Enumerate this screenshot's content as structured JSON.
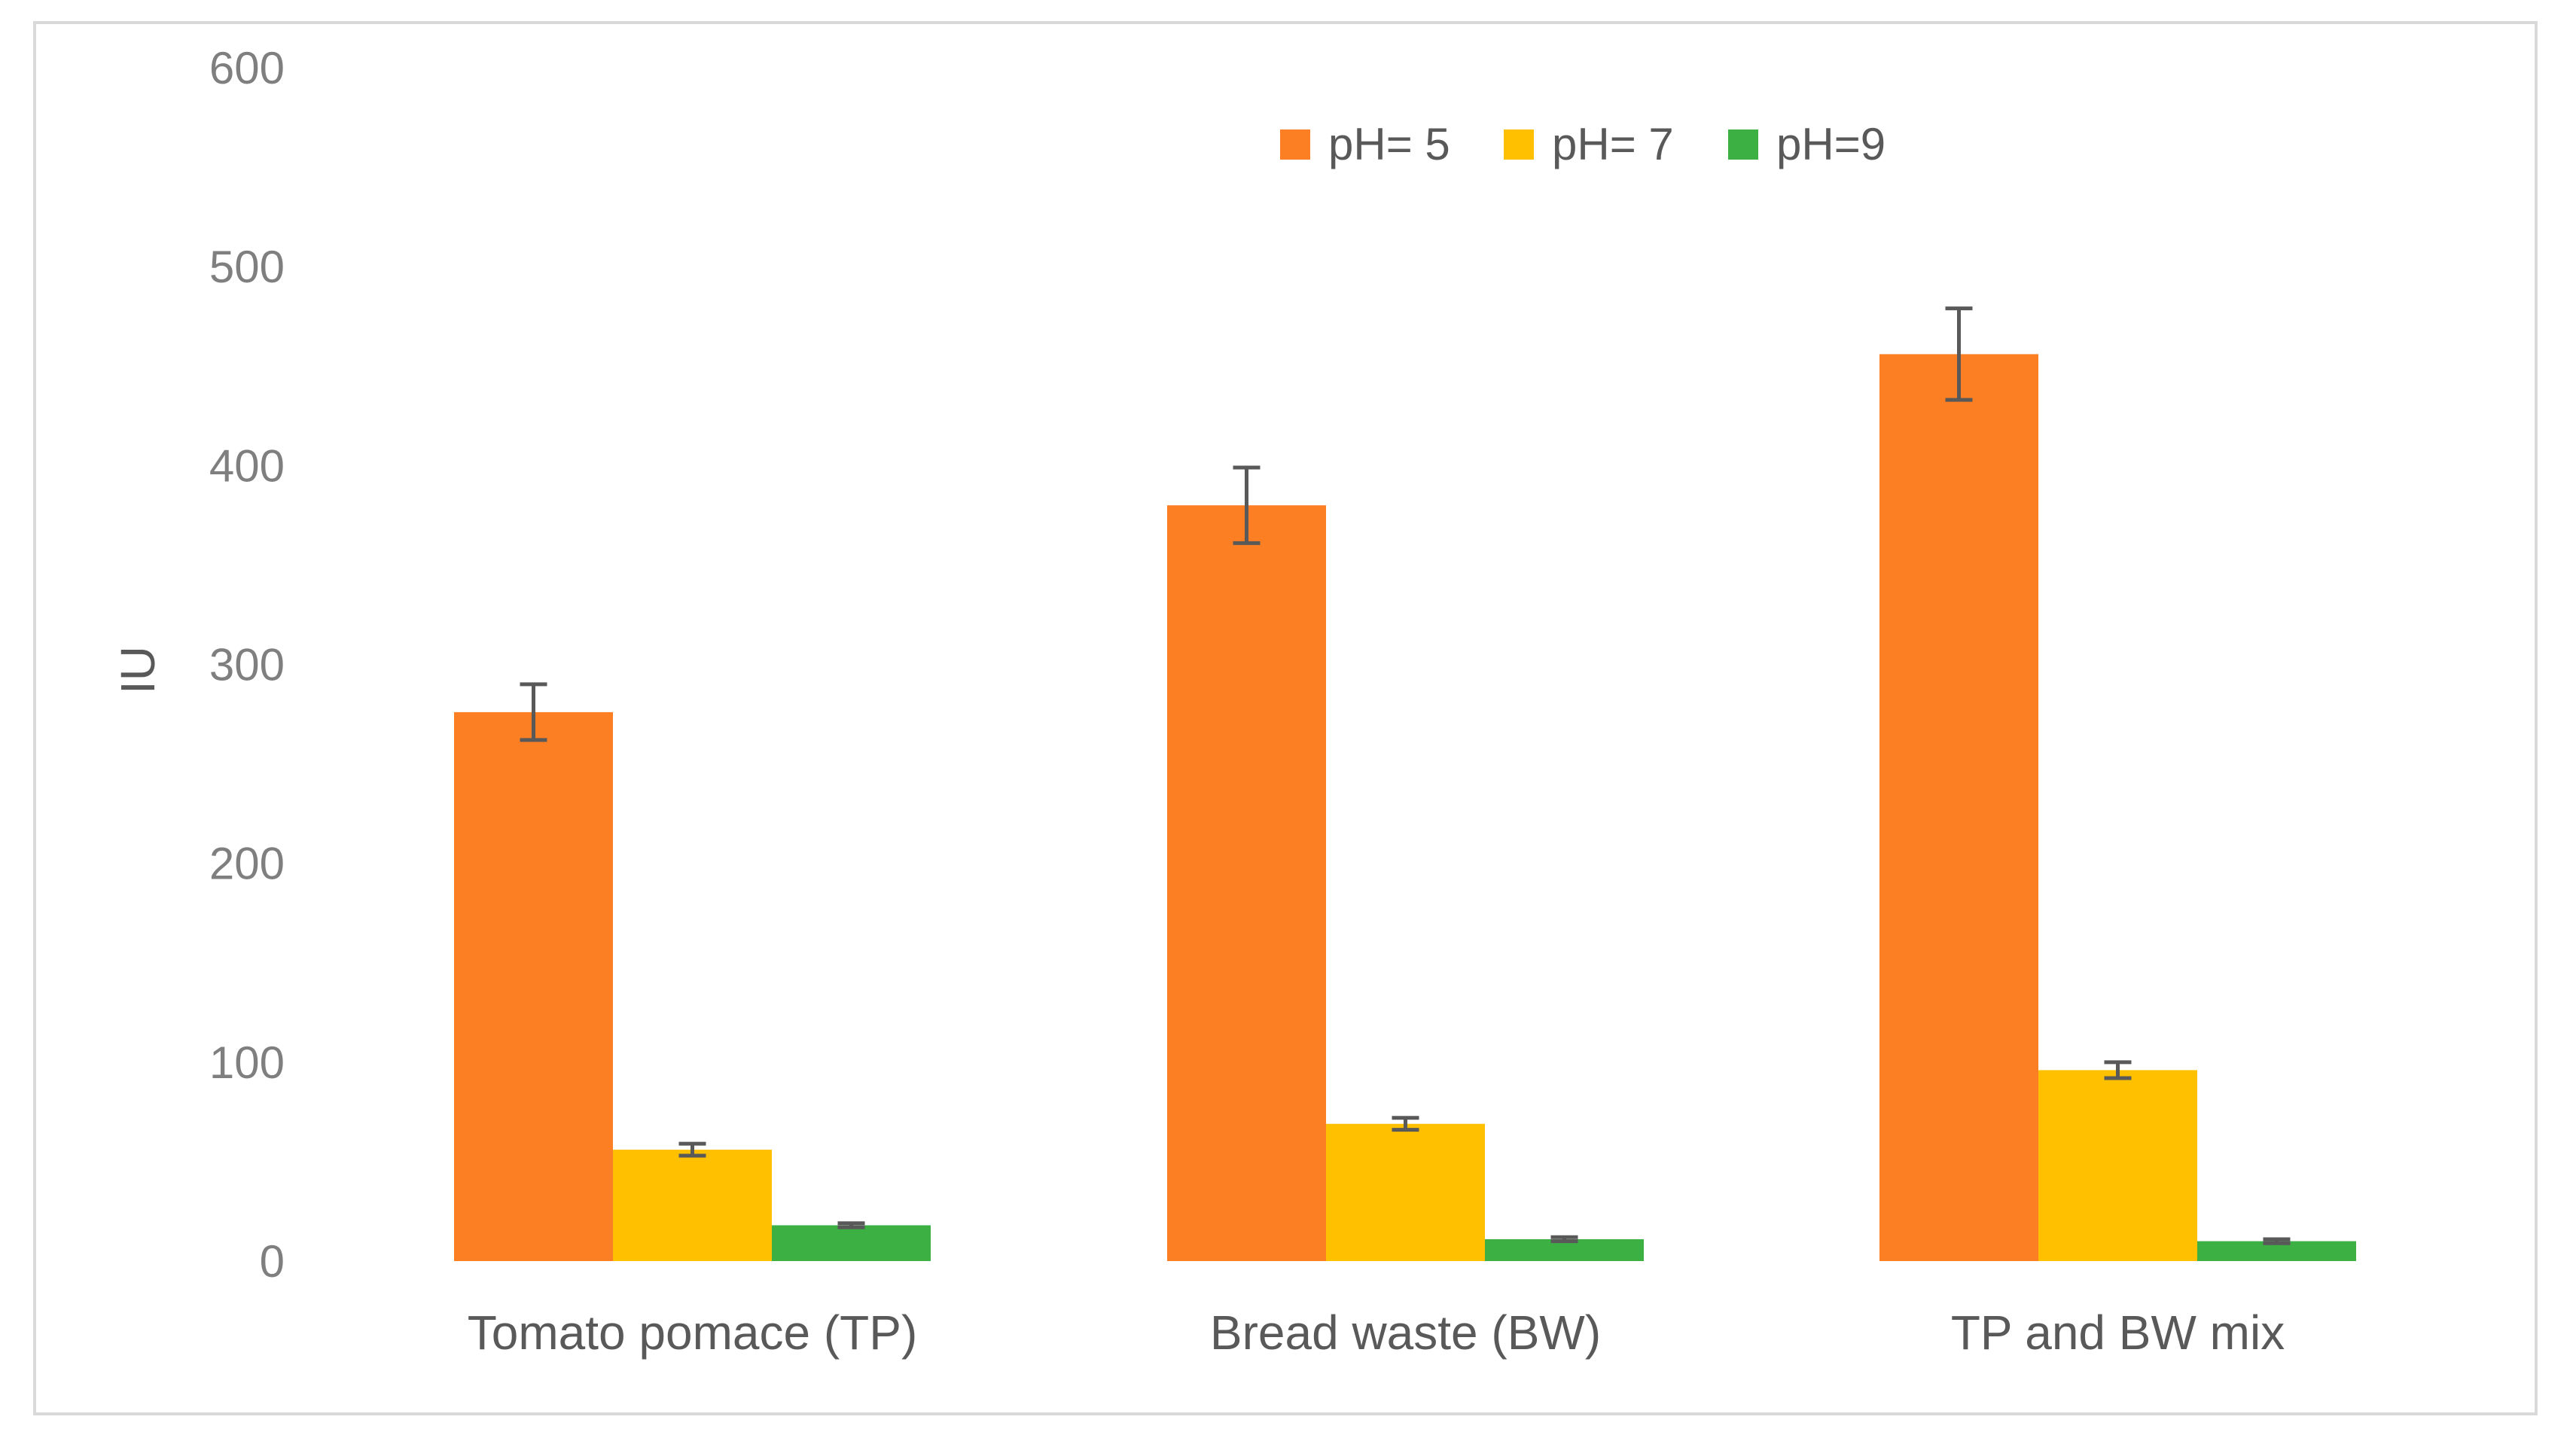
{
  "chart_data": {
    "type": "bar",
    "title": "",
    "xlabel": "",
    "ylabel": "IU",
    "ylim": [
      0,
      600
    ],
    "yticks": [
      0,
      100,
      200,
      300,
      400,
      500,
      600
    ],
    "grid": false,
    "legend_position": "top-right",
    "categories": [
      "Tomato pomace (TP)",
      "Bread waste (BW)",
      "TP and BW mix"
    ],
    "series": [
      {
        "name": "pH= 5",
        "color": "#fd7f24",
        "values": [
          276,
          380,
          456
        ],
        "errors": [
          14,
          19,
          23
        ]
      },
      {
        "name": "pH= 7",
        "color": "#ffc000",
        "values": [
          56,
          69,
          96
        ],
        "errors": [
          3,
          3,
          4
        ]
      },
      {
        "name": "pH=9",
        "color": "#3cb043",
        "values": [
          18,
          11,
          10
        ],
        "errors": [
          1,
          1,
          1
        ]
      }
    ],
    "error_bar_color": "#595959"
  }
}
